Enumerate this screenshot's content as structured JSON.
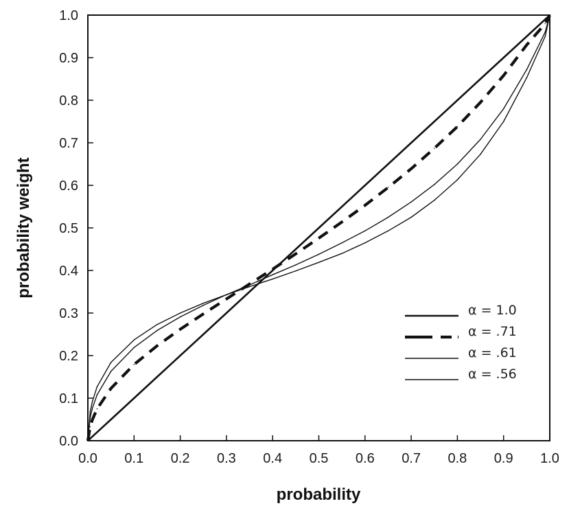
{
  "chart_data": {
    "type": "line",
    "title": "",
    "xlabel": "probability",
    "ylabel": "probability weight",
    "xlim": [
      0.0,
      1.0
    ],
    "ylim": [
      0.0,
      1.0
    ],
    "x_ticks": [
      "0.0",
      "0.1",
      "0.2",
      "0.3",
      "0.4",
      "0.5",
      "0.6",
      "0.7",
      "0.8",
      "0.9",
      "1.0"
    ],
    "y_ticks": [
      "0.0",
      "0.1",
      "0.2",
      "0.3",
      "0.4",
      "0.5",
      "0.6",
      "0.7",
      "0.8",
      "0.9",
      "1.0"
    ],
    "grid": false,
    "legend_position": "bottom-right",
    "x": [
      0.0,
      0.005,
      0.01,
      0.02,
      0.05,
      0.1,
      0.15,
      0.2,
      0.25,
      0.3,
      0.35,
      0.4,
      0.45,
      0.5,
      0.55,
      0.6,
      0.65,
      0.7,
      0.75,
      0.8,
      0.85,
      0.9,
      0.95,
      0.99,
      1.0
    ],
    "series": [
      {
        "name": "α = 1.0",
        "style": "solid-thick",
        "values": [
          0.0,
          0.005,
          0.01,
          0.02,
          0.05,
          0.1,
          0.15,
          0.2,
          0.25,
          0.3,
          0.35,
          0.4,
          0.45,
          0.5,
          0.55,
          0.6,
          0.65,
          0.7,
          0.75,
          0.8,
          0.85,
          0.9,
          0.95,
          0.99,
          1.0
        ]
      },
      {
        "name": "α = .71",
        "style": "dashed-thick",
        "values": [
          0.0,
          0.033,
          0.05,
          0.075,
          0.123,
          0.179,
          0.223,
          0.262,
          0.298,
          0.333,
          0.368,
          0.403,
          0.439,
          0.476,
          0.514,
          0.553,
          0.595,
          0.639,
          0.687,
          0.738,
          0.795,
          0.858,
          0.93,
          0.98,
          1.0
        ]
      },
      {
        "name": "α = .61",
        "style": "solid-thin",
        "values": [
          0.0,
          0.055,
          0.077,
          0.108,
          0.163,
          0.219,
          0.259,
          0.291,
          0.318,
          0.343,
          0.366,
          0.39,
          0.413,
          0.438,
          0.465,
          0.493,
          0.525,
          0.561,
          0.602,
          0.65,
          0.708,
          0.78,
          0.872,
          0.96,
          1.0
        ]
      },
      {
        "name": "α = .56",
        "style": "solid-thin",
        "values": [
          0.0,
          0.068,
          0.093,
          0.127,
          0.184,
          0.237,
          0.273,
          0.3,
          0.323,
          0.343,
          0.362,
          0.38,
          0.399,
          0.419,
          0.44,
          0.465,
          0.493,
          0.525,
          0.565,
          0.613,
          0.673,
          0.75,
          0.853,
          0.95,
          1.0
        ]
      }
    ]
  }
}
